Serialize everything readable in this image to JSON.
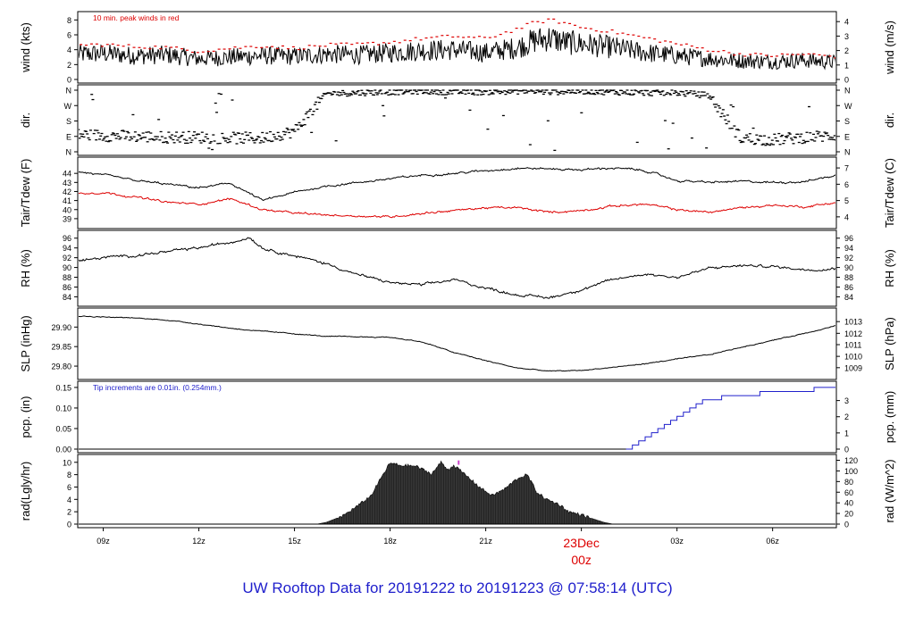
{
  "footer_title": "UW Rooftop Data for 20191222  to  20191223 @ 07:58:14  (UTC)",
  "colors": {
    "primary": "#000000",
    "secondary": "#dd0000",
    "precip": "#2020cc",
    "date_label": "#dd0000",
    "title": "#2020cc",
    "marker": "#cc44cc"
  },
  "chart_data": {
    "type": "line",
    "time_axis": {
      "xlim_hours": [
        8.2,
        8.0
      ],
      "ticks": [
        {
          "label": "09z",
          "hour": 9
        },
        {
          "label": "12z",
          "hour": 12
        },
        {
          "label": "15z",
          "hour": 15
        },
        {
          "label": "18z",
          "hour": 18
        },
        {
          "label": "21z",
          "hour": 21
        },
        {
          "label": "00z",
          "hour": 24,
          "date": "23Dec"
        },
        {
          "label": "03z",
          "hour": 27
        },
        {
          "label": "06z",
          "hour": 30
        }
      ],
      "date_label": "23Dec",
      "date_hour_label": "00z"
    },
    "panels": [
      {
        "id": "wind",
        "ylabel_left": "wind (kts)",
        "ylabel_right": "wind (m/s)",
        "ylim": [
          0,
          8.4
        ],
        "yticks_left": [
          "0",
          "2",
          "4",
          "6",
          "8"
        ],
        "yticks_left_values": [
          0,
          2,
          4,
          6,
          8
        ],
        "yticks_right": [
          "0",
          "1",
          "2",
          "3",
          "4"
        ],
        "yticks_right_values": [
          0,
          1.944,
          3.888,
          5.832,
          7.776
        ],
        "annotation": "10 min. peak winds in red",
        "series": [
          {
            "role": "mean",
            "x": [
              8.2,
              9,
              10,
              11,
              12,
              13,
              14,
              15,
              16,
              17,
              18,
              19,
              20,
              21,
              22,
              22.5,
              23,
              23.5,
              24,
              25,
              26,
              27,
              28,
              29,
              30,
              31,
              32
            ],
            "values": [
              3.4,
              3.5,
              3.2,
              3.3,
              2.8,
              3.0,
              3.2,
              3.1,
              3.4,
              3.3,
              3.6,
              3.9,
              4.0,
              3.6,
              4.3,
              5.2,
              5.6,
              5.0,
              4.8,
              4.3,
              3.6,
              3.2,
              2.8,
              2.5,
              2.4,
              2.6,
              2.3
            ]
          },
          {
            "role": "peak",
            "x": [
              8.2,
              9,
              10,
              11,
              12,
              13,
              14,
              15,
              16,
              17,
              18,
              19,
              20,
              21,
              22,
              22.5,
              23,
              23.5,
              24,
              25,
              26,
              27,
              28,
              29,
              30,
              31,
              32
            ],
            "values": [
              4.6,
              4.7,
              4.4,
              4.3,
              3.8,
              4.2,
              4.5,
              4.2,
              4.6,
              4.7,
              5.0,
              5.5,
              5.8,
              5.5,
              6.8,
              7.6,
              8.0,
              7.6,
              7.0,
              6.4,
              5.6,
              4.8,
              4.0,
              3.4,
              3.2,
              3.4,
              3.1
            ]
          }
        ]
      },
      {
        "id": "dir",
        "ylabel_left": "dir.",
        "ylabel_right": "dir.",
        "ylim": [
          0,
          360
        ],
        "yticks_left": [
          "N",
          "E",
          "S",
          "W",
          "N"
        ],
        "yticks_left_values": [
          0,
          90,
          180,
          270,
          360
        ],
        "yticks_right": [
          "N",
          "E",
          "S",
          "W",
          "N"
        ],
        "yticks_right_values": [
          0,
          90,
          180,
          270,
          360
        ],
        "series": [
          {
            "role": "direction",
            "x": [
              8.2,
              9,
              10,
              11,
              12,
              13,
              14,
              15,
              16,
              17,
              18,
              19,
              20,
              21,
              22,
              23,
              24,
              25,
              26,
              27,
              28,
              29,
              30,
              31,
              32
            ],
            "values": [
              100,
              95,
              90,
              85,
              85,
              80,
              80,
              120,
              340,
              345,
              350,
              355,
              350,
              350,
              355,
              350,
              355,
              350,
              345,
              345,
              330,
              80,
              70,
              85,
              95
            ]
          }
        ]
      },
      {
        "id": "temp",
        "ylabel_left": "Tair/Tdew (F)",
        "ylabel_right": "Tair/Tdew (C)",
        "ylim": [
          38.3,
          45.2
        ],
        "yticks_left": [
          "39",
          "40",
          "41",
          "42",
          "43",
          "44"
        ],
        "yticks_left_values": [
          39,
          40,
          41,
          42,
          43,
          44
        ],
        "yticks_right": [
          "4",
          "5",
          "6",
          "7"
        ],
        "yticks_right_values": [
          39.2,
          41.0,
          42.8,
          44.6
        ],
        "series": [
          {
            "role": "air",
            "x": [
              8.2,
              9,
              10,
              11,
              12,
              13,
              14,
              15,
              16,
              17,
              18,
              19,
              20,
              21,
              22,
              23,
              24,
              25,
              26,
              27,
              28,
              29,
              30,
              31,
              32
            ],
            "values": [
              44.2,
              43.8,
              43.2,
              42.8,
              42.4,
              42.9,
              41.0,
              41.9,
              42.6,
              43.0,
              43.4,
              43.8,
              44.0,
              44.3,
              44.6,
              44.5,
              44.4,
              44.6,
              44.3,
              43.2,
              43.0,
              43.1,
              43.0,
              43.1,
              43.8
            ]
          },
          {
            "role": "dew",
            "x": [
              8.2,
              9,
              10,
              11,
              12,
              13,
              14,
              15,
              16,
              17,
              18,
              19,
              20,
              21,
              22,
              23,
              24,
              25,
              26,
              27,
              28,
              29,
              30,
              31,
              32
            ],
            "values": [
              41.8,
              41.9,
              41.4,
              40.8,
              40.6,
              41.2,
              40.0,
              39.6,
              39.4,
              39.3,
              39.2,
              39.6,
              39.9,
              40.2,
              40.2,
              39.7,
              39.9,
              40.4,
              40.6,
              40.0,
              39.7,
              40.2,
              40.5,
              40.3,
              40.8
            ]
          }
        ]
      },
      {
        "id": "rh",
        "ylabel_left": "RH (%)",
        "ylabel_right": "RH (%)",
        "ylim": [
          82.8,
          96.5
        ],
        "yticks_left": [
          "84",
          "86",
          "88",
          "90",
          "92",
          "94",
          "96"
        ],
        "yticks_left_values": [
          84,
          86,
          88,
          90,
          92,
          94,
          96
        ],
        "yticks_right": [
          "84",
          "86",
          "88",
          "90",
          "92",
          "94",
          "96"
        ],
        "yticks_right_values": [
          84,
          86,
          88,
          90,
          92,
          94,
          96
        ],
        "series": [
          {
            "role": "rh",
            "x": [
              8.2,
              9,
              10,
              11,
              12,
              13,
              13.6,
              14,
              15,
              16,
              17,
              18,
              19,
              20,
              21,
              22,
              23,
              24,
              25,
              26,
              27,
              28,
              29,
              30,
              31,
              32
            ],
            "values": [
              91.3,
              92.0,
              92.5,
              93.2,
              94.0,
              95.2,
              96.2,
              94.0,
              92.4,
              90.8,
              88.5,
              86.9,
              86.4,
              87.5,
              85.8,
              84.4,
              83.8,
              85.5,
              87.5,
              88.7,
              88.0,
              89.8,
              90.4,
              90.2,
              89.6,
              89.8
            ]
          }
        ]
      },
      {
        "id": "slp",
        "ylabel_left": "SLP (inHg)",
        "ylabel_right": "SLP (hPa)",
        "ylim": [
          29.775,
          29.935
        ],
        "yticks_left": [
          "29.80",
          "29.85",
          "29.90"
        ],
        "yticks_left_values": [
          29.8,
          29.85,
          29.9
        ],
        "yticks_right": [
          "1009",
          "1010",
          "1011",
          "1012",
          "1013"
        ],
        "yticks_right_values": [
          29.796,
          29.825,
          29.855,
          29.884,
          29.914
        ],
        "series": [
          {
            "role": "slp",
            "x": [
              8.2,
              9,
              10,
              11,
              12,
              13,
              14,
              15,
              16,
              17,
              18,
              19,
              20,
              21,
              22,
              23,
              24,
              25,
              26,
              27,
              28,
              29,
              30,
              31,
              32
            ],
            "values": [
              29.928,
              29.926,
              29.923,
              29.918,
              29.908,
              29.897,
              29.889,
              29.883,
              29.876,
              29.875,
              29.874,
              29.862,
              29.835,
              29.814,
              29.795,
              29.787,
              29.789,
              29.797,
              29.806,
              29.818,
              29.829,
              29.848,
              29.866,
              29.884,
              29.904
            ]
          }
        ]
      },
      {
        "id": "pcp",
        "ylabel_left": "pcp. (in)",
        "ylabel_right": "pcp. (mm)",
        "ylim": [
          0,
          0.152
        ],
        "yticks_left": [
          "0.00",
          "0.05",
          "0.10",
          "0.15"
        ],
        "yticks_left_values": [
          0,
          0.05,
          0.1,
          0.15
        ],
        "yticks_right": [
          "0",
          "1",
          "2",
          "3"
        ],
        "yticks_right_values": [
          0,
          0.03937,
          0.07874,
          0.11811
        ],
        "annotation": "Tip increments are 0.01in. (0.254mm.)",
        "series": [
          {
            "role": "pcp",
            "step": true,
            "x": [
              8.2,
              25.4,
              25.6,
              25.8,
              26.0,
              26.2,
              26.4,
              26.6,
              26.8,
              27.0,
              27.2,
              27.4,
              27.6,
              27.8,
              28.0,
              28.4,
              29.0,
              29.6,
              30.2,
              31.0,
              31.3,
              32.0
            ],
            "values": [
              0,
              0,
              0.01,
              0.02,
              0.03,
              0.04,
              0.05,
              0.06,
              0.07,
              0.08,
              0.09,
              0.1,
              0.11,
              0.12,
              0.12,
              0.13,
              0.13,
              0.14,
              0.14,
              0.14,
              0.15,
              0.15
            ]
          }
        ]
      },
      {
        "id": "rad",
        "ylabel_left": "rad(Lgly/hr)",
        "ylabel_right": "rad (W/m^2)",
        "ylim": [
          0,
          10.4
        ],
        "yticks_left": [
          "0",
          "2",
          "4",
          "6",
          "8",
          "10"
        ],
        "yticks_left_values": [
          0,
          2,
          4,
          6,
          8,
          10
        ],
        "yticks_right": [
          "0",
          "20",
          "40",
          "60",
          "80",
          "100",
          "120"
        ],
        "yticks_right_values": [
          0,
          1.721,
          3.442,
          5.163,
          6.884,
          8.605,
          10.326
        ],
        "series": [
          {
            "role": "rad",
            "area": true,
            "x": [
              15.7,
              16.0,
              16.5,
              17.0,
              17.4,
              17.8,
              18.0,
              18.3,
              18.8,
              19.3,
              19.6,
              19.8,
              20.0,
              20.4,
              20.8,
              21.2,
              21.6,
              22.0,
              22.3,
              22.6,
              22.9,
              23.3,
              23.6,
              24.0,
              24.4,
              24.7,
              25.0
            ],
            "values": [
              0,
              0.3,
              1.3,
              3.0,
              4.6,
              8.2,
              9.9,
              9.5,
              9.4,
              8.1,
              10.0,
              8.8,
              9.5,
              7.8,
              6.0,
              4.6,
              5.7,
              7.4,
              8.0,
              5.2,
              4.0,
              3.2,
              2.0,
              1.5,
              0.8,
              0.3,
              0
            ]
          }
        ]
      }
    ]
  }
}
